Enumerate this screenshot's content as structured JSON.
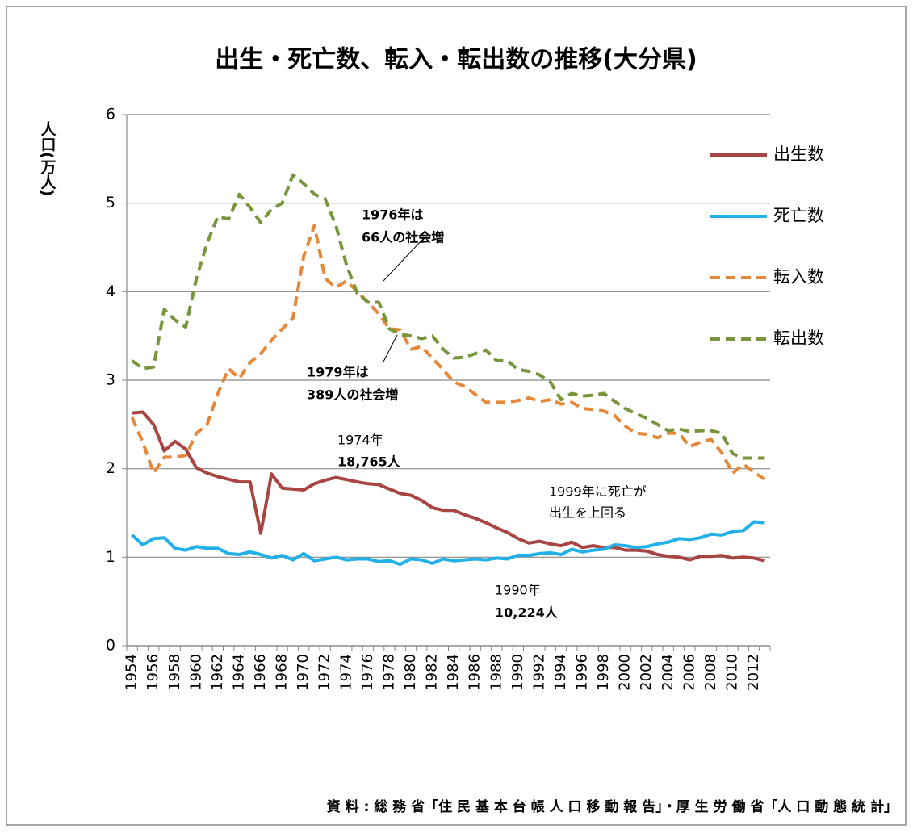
{
  "chart_data": {
    "type": "line",
    "title": "出生・死亡数、転入・転出数の推移(大分県)",
    "y_label": "人口(万人)",
    "source": "資 料 : 総 務 省「住 民 基 本 台 帳 人 口 移 動 報 告」・厚 生 労 働 省「人 口 動 態 統 計」",
    "categories": [
      "1954",
      null,
      "1956",
      null,
      "1958",
      null,
      "1960",
      null,
      "1962",
      null,
      "1964",
      null,
      "1966",
      null,
      "1968",
      null,
      "1970",
      null,
      "1972",
      null,
      "1974",
      null,
      "1976",
      null,
      "1978",
      null,
      "1980",
      null,
      "1982",
      null,
      "1984",
      null,
      "1986",
      null,
      "1988",
      null,
      "1990",
      null,
      "1992",
      null,
      "1994",
      null,
      "1996",
      null,
      "1998",
      null,
      "2000",
      null,
      "2002",
      null,
      "2004",
      null,
      "2006",
      null,
      "2008",
      null,
      "2010",
      null,
      "2012",
      null
    ],
    "ylim": [
      0,
      6
    ],
    "yticks": [
      0,
      1,
      2,
      3,
      4,
      5,
      6
    ],
    "grid": true,
    "legend": "right",
    "series": [
      {
        "name": "出生数",
        "color": "#a84442",
        "style": "solid",
        "values": [
          2.63,
          2.64,
          2.5,
          2.2,
          2.31,
          2.22,
          2.01,
          1.95,
          1.91,
          1.88,
          1.85,
          1.85,
          1.27,
          1.94,
          1.78,
          1.77,
          1.76,
          1.83,
          1.87,
          1.9,
          1.8765,
          1.85,
          1.83,
          1.82,
          1.77,
          1.72,
          1.7,
          1.64,
          1.56,
          1.53,
          1.53,
          1.48,
          1.44,
          1.39,
          1.33,
          1.28,
          1.21,
          1.16,
          1.18,
          1.15,
          1.13,
          1.17,
          1.11,
          1.13,
          1.11,
          1.11,
          1.08,
          1.08,
          1.07,
          1.03,
          1.01,
          1.0,
          0.97,
          1.01,
          1.01,
          1.02,
          0.99,
          1.0,
          0.99,
          0.96
        ]
      },
      {
        "name": "死亡数",
        "color": "#21b0e8",
        "style": "solid",
        "values": [
          1.25,
          1.14,
          1.21,
          1.22,
          1.1,
          1.08,
          1.12,
          1.1,
          1.1,
          1.04,
          1.03,
          1.06,
          1.03,
          0.99,
          1.02,
          0.97,
          1.04,
          0.96,
          0.98,
          1.0,
          0.97,
          0.98,
          0.98,
          0.95,
          0.96,
          0.92,
          0.98,
          0.97,
          0.93,
          0.98,
          0.96,
          0.97,
          0.98,
          0.97,
          0.99,
          0.98,
          1.0224,
          1.02,
          1.04,
          1.05,
          1.03,
          1.09,
          1.06,
          1.08,
          1.09,
          1.14,
          1.13,
          1.11,
          1.12,
          1.15,
          1.17,
          1.21,
          1.2,
          1.22,
          1.26,
          1.25,
          1.29,
          1.3,
          1.4,
          1.39
        ]
      },
      {
        "name": "転入数",
        "color": "#e5883a",
        "style": "dashed",
        "values": [
          2.58,
          2.3,
          1.95,
          2.13,
          2.13,
          2.15,
          2.4,
          2.5,
          2.85,
          3.13,
          3.02,
          3.2,
          3.3,
          3.45,
          3.58,
          3.7,
          4.4,
          4.75,
          4.15,
          4.05,
          4.12,
          4.0,
          3.88,
          3.75,
          3.58,
          3.57,
          3.35,
          3.38,
          3.25,
          3.12,
          2.98,
          2.93,
          2.84,
          2.75,
          2.75,
          2.75,
          2.77,
          2.8,
          2.76,
          2.78,
          2.73,
          2.75,
          2.68,
          2.67,
          2.65,
          2.6,
          2.48,
          2.4,
          2.39,
          2.35,
          2.4,
          2.4,
          2.25,
          2.3,
          2.33,
          2.18,
          1.95,
          2.05,
          1.96,
          1.88
        ]
      },
      {
        "name": "転出数",
        "color": "#77963b",
        "style": "dashed",
        "values": [
          3.22,
          3.13,
          3.15,
          3.8,
          3.68,
          3.6,
          4.15,
          4.55,
          4.85,
          4.82,
          5.1,
          4.95,
          4.78,
          4.93,
          5.0,
          5.32,
          5.22,
          5.1,
          5.05,
          4.75,
          4.3,
          3.98,
          3.88,
          3.88,
          3.58,
          3.52,
          3.5,
          3.47,
          3.5,
          3.35,
          3.25,
          3.26,
          3.3,
          3.34,
          3.22,
          3.22,
          3.12,
          3.1,
          3.06,
          2.98,
          2.78,
          2.85,
          2.82,
          2.83,
          2.85,
          2.76,
          2.68,
          2.62,
          2.57,
          2.5,
          2.43,
          2.45,
          2.42,
          2.43,
          2.43,
          2.4,
          2.17,
          2.12,
          2.12,
          2.12
        ]
      }
    ],
    "annotations": [
      [
        "1976年は",
        "66人の社会増"
      ],
      [
        "1979年は",
        "389人の社会増"
      ],
      [
        "1974年",
        "18,765人"
      ],
      [
        "1999年に死亡が",
        "出生を上回る"
      ],
      [
        "1990年",
        "10,224人"
      ]
    ]
  }
}
